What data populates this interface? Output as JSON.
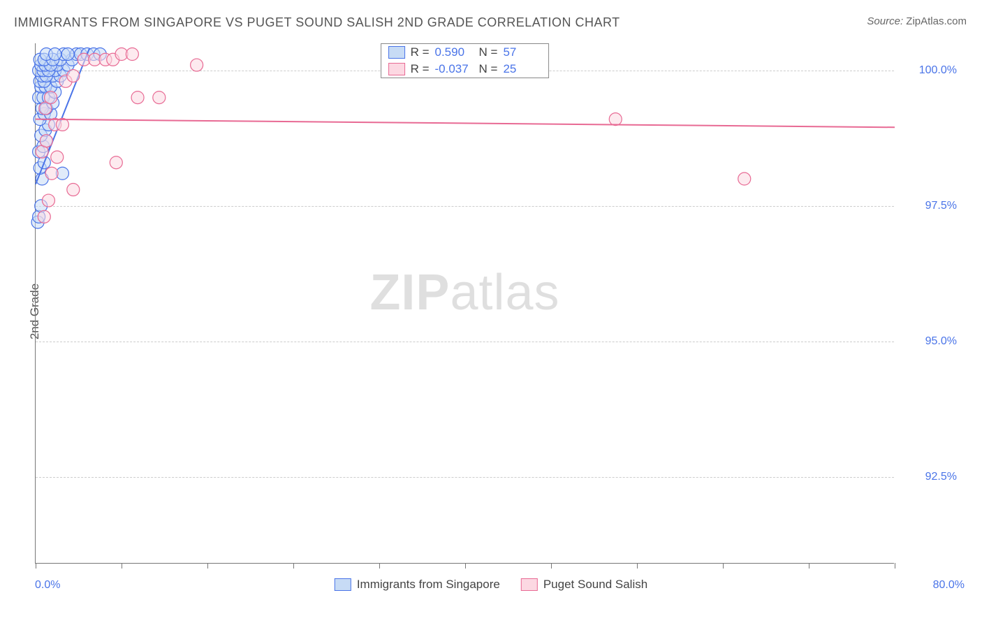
{
  "title": "IMMIGRANTS FROM SINGAPORE VS PUGET SOUND SALISH 2ND GRADE CORRELATION CHART",
  "source_label": "Source:",
  "source_value": "ZipAtlas.com",
  "watermark_zip": "ZIP",
  "watermark_atlas": "atlas",
  "chart": {
    "type": "scatter",
    "yaxis_label": "2nd Grade",
    "xlim": [
      0.0,
      80.0
    ],
    "ylim": [
      90.9,
      100.5
    ],
    "xlim_left_label": "0.0%",
    "xlim_right_label": "80.0%",
    "ytick_values": [
      92.5,
      95.0,
      97.5,
      100.0
    ],
    "ytick_labels": [
      "92.5%",
      "95.0%",
      "97.5%",
      "100.0%"
    ],
    "xtick_values": [
      0,
      8,
      16,
      24,
      32,
      40,
      48,
      56,
      64,
      72,
      80
    ],
    "grid_color": "#cccccc",
    "axis_color": "#777777",
    "tick_label_color": "#4a74e8",
    "background_color": "#ffffff",
    "marker_radius": 9,
    "marker_stroke_width": 1.2,
    "trend_line_width": 2,
    "series": [
      {
        "name": "Immigrants from Singapore",
        "fill": "#c7dbf5",
        "stroke": "#4a74e8",
        "fill_opacity": 0.55,
        "R": "0.590",
        "N": "57",
        "trend": {
          "x1": 0.0,
          "y1": 97.9,
          "x2": 5.0,
          "y2": 100.4
        },
        "points": [
          [
            0.2,
            97.2
          ],
          [
            0.3,
            97.3
          ],
          [
            0.5,
            97.5
          ],
          [
            0.6,
            98.0
          ],
          [
            0.4,
            98.2
          ],
          [
            0.8,
            98.3
          ],
          [
            0.3,
            98.5
          ],
          [
            0.7,
            98.6
          ],
          [
            1.0,
            98.7
          ],
          [
            0.5,
            98.8
          ],
          [
            0.9,
            98.9
          ],
          [
            1.2,
            99.0
          ],
          [
            0.4,
            99.1
          ],
          [
            0.8,
            99.2
          ],
          [
            1.4,
            99.2
          ],
          [
            0.6,
            99.3
          ],
          [
            1.0,
            99.3
          ],
          [
            1.6,
            99.4
          ],
          [
            0.3,
            99.5
          ],
          [
            0.7,
            99.5
          ],
          [
            1.2,
            99.5
          ],
          [
            1.8,
            99.6
          ],
          [
            0.5,
            99.7
          ],
          [
            0.9,
            99.7
          ],
          [
            1.4,
            99.7
          ],
          [
            2.0,
            99.8
          ],
          [
            0.4,
            99.8
          ],
          [
            0.8,
            99.8
          ],
          [
            1.6,
            99.9
          ],
          [
            2.3,
            99.9
          ],
          [
            0.6,
            99.9
          ],
          [
            1.0,
            99.9
          ],
          [
            1.8,
            100.0
          ],
          [
            2.6,
            100.0
          ],
          [
            0.3,
            100.0
          ],
          [
            0.7,
            100.0
          ],
          [
            1.2,
            100.0
          ],
          [
            2.0,
            100.1
          ],
          [
            3.0,
            100.1
          ],
          [
            0.5,
            100.1
          ],
          [
            0.9,
            100.1
          ],
          [
            1.4,
            100.1
          ],
          [
            2.3,
            100.2
          ],
          [
            3.4,
            100.2
          ],
          [
            0.4,
            100.2
          ],
          [
            0.8,
            100.2
          ],
          [
            1.6,
            100.2
          ],
          [
            2.6,
            100.3
          ],
          [
            3.8,
            100.3
          ],
          [
            1.0,
            100.3
          ],
          [
            1.8,
            100.3
          ],
          [
            3.0,
            100.3
          ],
          [
            4.2,
            100.3
          ],
          [
            4.8,
            100.3
          ],
          [
            5.4,
            100.3
          ],
          [
            6.0,
            100.3
          ],
          [
            2.5,
            98.1
          ]
        ]
      },
      {
        "name": "Puget Sound Salish",
        "fill": "#fcd8e2",
        "stroke": "#e86a94",
        "fill_opacity": 0.55,
        "R": "-0.037",
        "N": "25",
        "trend": {
          "x1": 0.0,
          "y1": 99.1,
          "x2": 80.0,
          "y2": 98.95
        },
        "points": [
          [
            0.8,
            97.3
          ],
          [
            1.2,
            97.6
          ],
          [
            3.5,
            97.8
          ],
          [
            1.5,
            98.1
          ],
          [
            2.0,
            98.4
          ],
          [
            0.6,
            98.5
          ],
          [
            1.0,
            98.7
          ],
          [
            7.5,
            98.3
          ],
          [
            1.8,
            99.0
          ],
          [
            2.5,
            99.0
          ],
          [
            0.9,
            99.3
          ],
          [
            1.4,
            99.5
          ],
          [
            9.5,
            99.5
          ],
          [
            11.5,
            99.5
          ],
          [
            2.8,
            99.8
          ],
          [
            3.5,
            99.9
          ],
          [
            15.0,
            100.1
          ],
          [
            4.5,
            100.2
          ],
          [
            5.5,
            100.2
          ],
          [
            6.5,
            100.2
          ],
          [
            7.2,
            100.2
          ],
          [
            8.0,
            100.3
          ],
          [
            9.0,
            100.3
          ],
          [
            54.0,
            99.1
          ],
          [
            66.0,
            98.0
          ]
        ]
      }
    ]
  },
  "legend_top": {
    "r_label": "R  =",
    "n_label": "N  ="
  }
}
